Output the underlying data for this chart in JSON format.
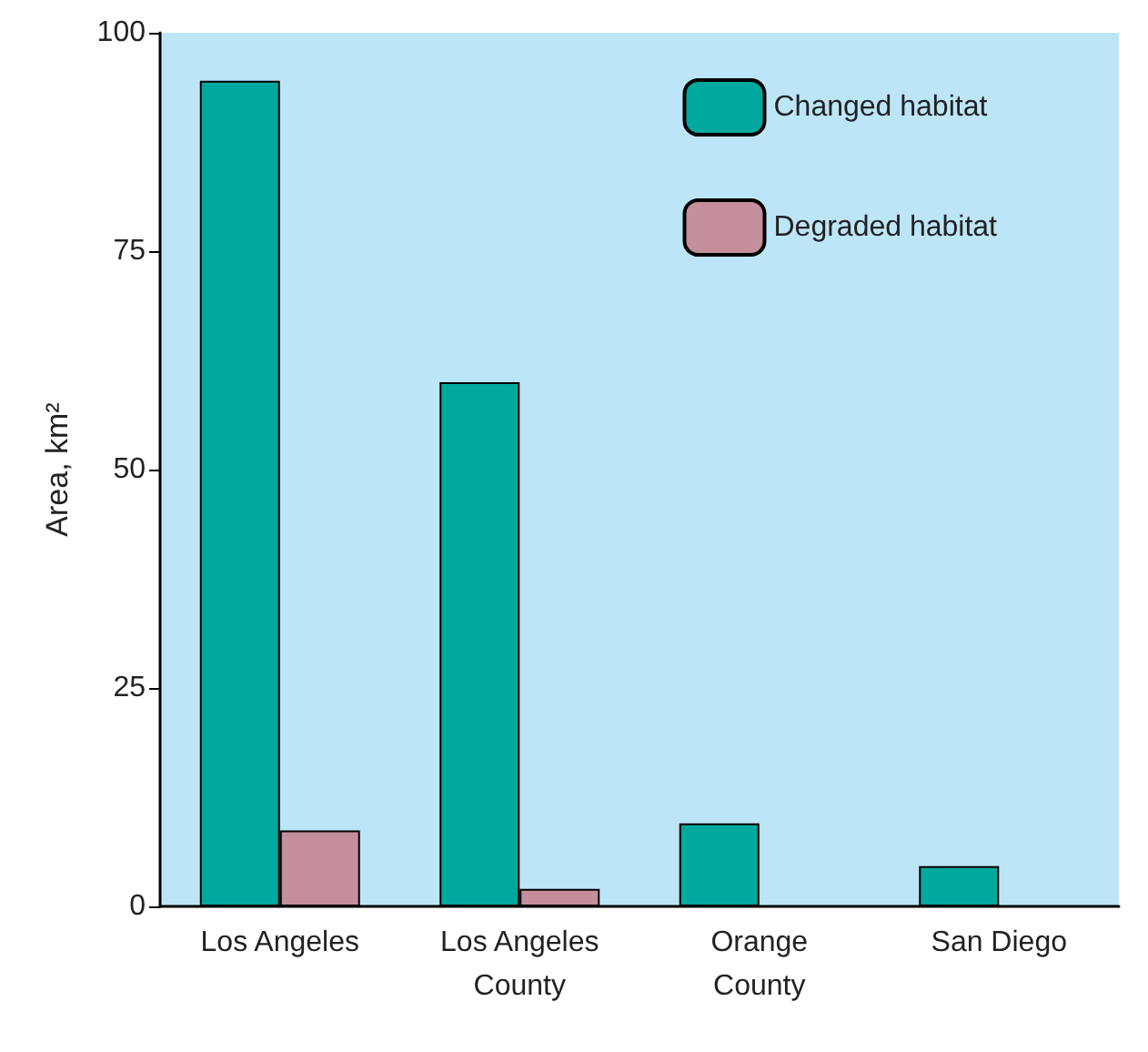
{
  "chart_data": {
    "type": "bar",
    "ylabel": "Area, km²",
    "categories": [
      "Los Angeles",
      "Los Angeles\nCounty",
      "Orange\nCounty",
      "San Diego"
    ],
    "series": [
      {
        "name": "Changed habitat",
        "color": "#00a99d",
        "values": [
          94.5,
          60,
          9.5,
          4.6
        ]
      },
      {
        "name": "Degraded habitat",
        "color": "#c48e9c",
        "values": [
          8.7,
          2,
          null,
          null
        ]
      }
    ],
    "ylim": [
      0,
      100
    ],
    "yticks": [
      0,
      25,
      50,
      75,
      100
    ],
    "grid": false,
    "legend": "top right"
  }
}
